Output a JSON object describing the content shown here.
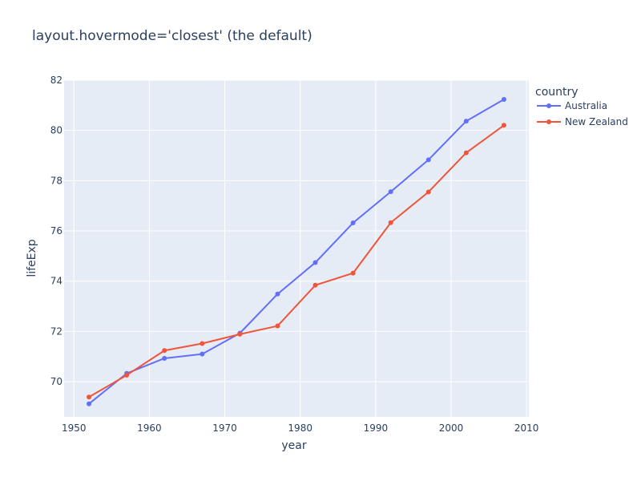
{
  "chart_data": {
    "type": "line",
    "title": "layout.hovermode='closest' (the default)",
    "xlabel": "year",
    "ylabel": "lifeExp",
    "xlim": [
      1948.7,
      2010.3
    ],
    "ylim": [
      68.6,
      82
    ],
    "x_ticks": [
      1950,
      1960,
      1970,
      1980,
      1990,
      2000,
      2010
    ],
    "y_ticks": [
      70,
      72,
      74,
      76,
      78,
      80,
      82
    ],
    "grid": true,
    "hovermode": "closest",
    "legend": {
      "title": "country",
      "position": "right",
      "entries": [
        "Australia",
        "New Zealand"
      ]
    },
    "x": [
      1952,
      1957,
      1962,
      1967,
      1972,
      1977,
      1982,
      1987,
      1992,
      1997,
      2002,
      2007
    ],
    "series": [
      {
        "name": "Australia",
        "color": "#636efa",
        "values": [
          69.12,
          70.33,
          70.93,
          71.1,
          71.93,
          73.49,
          74.74,
          76.32,
          77.56,
          78.83,
          80.37,
          81.235
        ]
      },
      {
        "name": "New Zealand",
        "color": "#ef553b",
        "values": [
          69.39,
          70.26,
          71.24,
          71.52,
          71.89,
          72.22,
          73.84,
          74.32,
          76.33,
          77.55,
          79.11,
          80.204
        ]
      }
    ],
    "colors": {
      "plot_background": "#e5ecf6",
      "grid": "#ffffff",
      "text": "#2a3f5f"
    }
  }
}
